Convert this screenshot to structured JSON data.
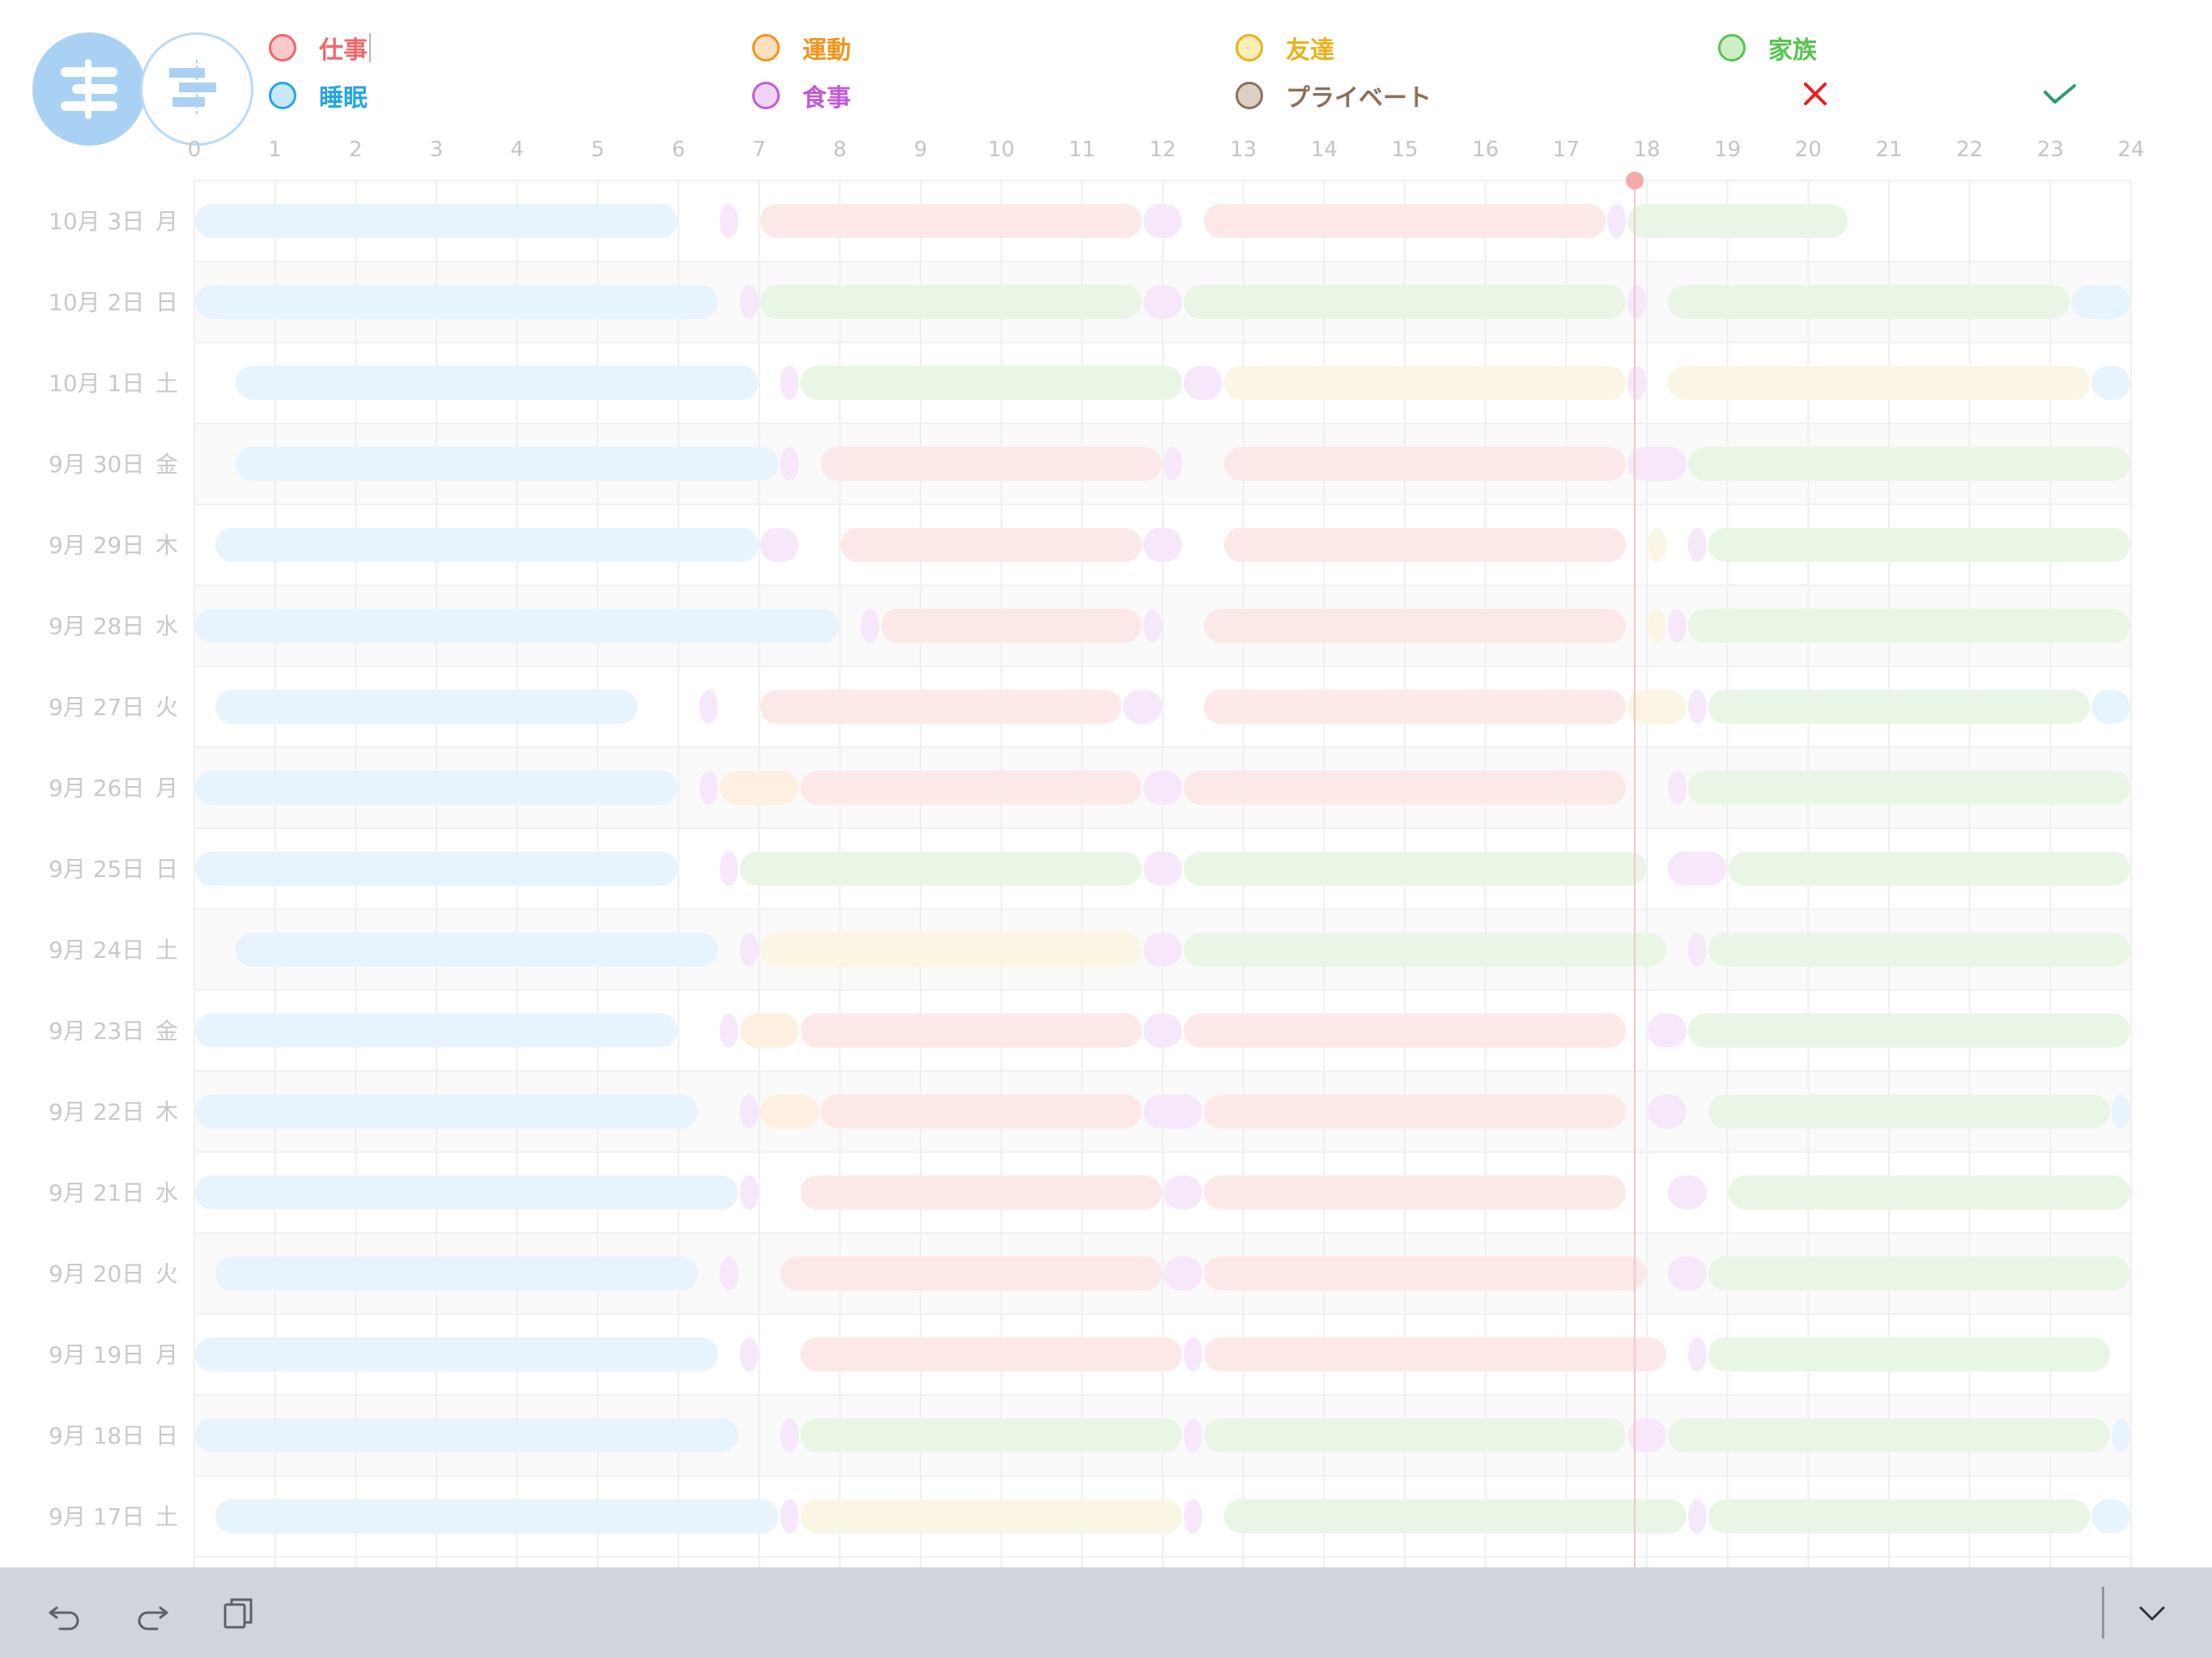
{
  "colors": {
    "仕事": "#fde8e8",
    "睡眠": "#e7f3fd",
    "運動": "#fdf0e0",
    "食事": "#f6e7fa",
    "友達": "#fbf5e3",
    "プライベート": "#ede6df",
    "家族": "#e9f6e5",
    "now_line": "#f6c5c5",
    "now_dot": "#f5a9a9"
  },
  "header": {
    "list_button_icon": "list-view-icon",
    "gantt_button_icon": "gantt-view-icon",
    "legend": [
      {
        "key": "work",
        "label": "仕事",
        "text_color": "#f0666b",
        "fill": "#fbc9c9",
        "border": "#f0666b"
      },
      {
        "key": "sleep",
        "label": "睡眠",
        "text_color": "#27a5e0",
        "fill": "#c8e7f8",
        "border": "#27a5e0"
      },
      {
        "key": "exercise",
        "label": "運動",
        "text_color": "#f2931e",
        "fill": "#fce0c0",
        "border": "#f2931e"
      },
      {
        "key": "meal",
        "label": "食事",
        "text_color": "#c05ad6",
        "fill": "#f0d3f6",
        "border": "#c05ad6"
      },
      {
        "key": "friends",
        "label": "友達",
        "text_color": "#e8b21a",
        "fill": "#fbedb6",
        "border": "#e8b21a"
      },
      {
        "key": "private",
        "label": "プライベート",
        "text_color": "#8a6f59",
        "fill": "#dccfc4",
        "border": "#8a6f59"
      },
      {
        "key": "family",
        "label": "家族",
        "text_color": "#56c44f",
        "fill": "#cdefc6",
        "border": "#56c44f"
      }
    ],
    "cancel_icon": "close-icon",
    "confirm_icon": "check-icon"
  },
  "chart_data": {
    "type": "gantt",
    "x_ticks": [
      "0",
      "1",
      "2",
      "3",
      "4",
      "5",
      "6",
      "7",
      "8",
      "9",
      "10",
      "11",
      "12",
      "13",
      "14",
      "15",
      "16",
      "17",
      "18",
      "19",
      "20",
      "21",
      "22",
      "23",
      "24"
    ],
    "xlim": [
      0,
      24
    ],
    "current_time": 17.85,
    "rows": [
      {
        "date": "10月 3日",
        "weekday": "月",
        "segments": [
          [
            "睡眠",
            0,
            6
          ],
          [
            "食事",
            6.5,
            6.75
          ],
          [
            "仕事",
            7,
            11.75
          ],
          [
            "食事",
            11.75,
            12.25
          ],
          [
            "仕事",
            12.5,
            17.5
          ],
          [
            "食事",
            17.5,
            17.75
          ],
          [
            "家族",
            17.75,
            20.5
          ]
        ]
      },
      {
        "date": "10月 2日",
        "weekday": "日",
        "segments": [
          [
            "睡眠",
            0,
            6.5
          ],
          [
            "食事",
            6.75,
            7
          ],
          [
            "家族",
            7,
            11.75
          ],
          [
            "食事",
            11.75,
            12.25
          ],
          [
            "家族",
            12.25,
            17.75
          ],
          [
            "食事",
            17.75,
            18
          ],
          [
            "家族",
            18.25,
            23.25
          ],
          [
            "睡眠",
            23.25,
            24
          ]
        ]
      },
      {
        "date": "10月 1日",
        "weekday": "土",
        "segments": [
          [
            "睡眠",
            0.5,
            7
          ],
          [
            "食事",
            7.25,
            7.5
          ],
          [
            "家族",
            7.5,
            12.25
          ],
          [
            "食事",
            12.25,
            12.75
          ],
          [
            "友達",
            12.75,
            17.75
          ],
          [
            "食事",
            17.75,
            18
          ],
          [
            "友達",
            18.25,
            23.5
          ],
          [
            "睡眠",
            23.5,
            24
          ]
        ]
      },
      {
        "date": "9月 30日",
        "weekday": "金",
        "segments": [
          [
            "睡眠",
            0.5,
            7.25
          ],
          [
            "食事",
            7.25,
            7.5
          ],
          [
            "仕事",
            7.75,
            12
          ],
          [
            "食事",
            12,
            12.25
          ],
          [
            "仕事",
            12.75,
            17.75
          ],
          [
            "食事",
            17.75,
            18.5
          ],
          [
            "家族",
            18.5,
            24
          ]
        ]
      },
      {
        "date": "9月 29日",
        "weekday": "木",
        "segments": [
          [
            "睡眠",
            0.25,
            7
          ],
          [
            "食事",
            7,
            7.5
          ],
          [
            "仕事",
            8,
            11.75
          ],
          [
            "食事",
            11.75,
            12.25
          ],
          [
            "仕事",
            12.75,
            17.75
          ],
          [
            "友達",
            18,
            18.25
          ],
          [
            "食事",
            18.5,
            18.75
          ],
          [
            "家族",
            18.75,
            24
          ]
        ]
      },
      {
        "date": "9月 28日",
        "weekday": "水",
        "segments": [
          [
            "睡眠",
            0,
            8
          ],
          [
            "食事",
            8.25,
            8.5
          ],
          [
            "仕事",
            8.5,
            11.75
          ],
          [
            "食事",
            11.75,
            12
          ],
          [
            "仕事",
            12.5,
            17.75
          ],
          [
            "友達",
            18,
            18.25
          ],
          [
            "食事",
            18.25,
            18.5
          ],
          [
            "家族",
            18.5,
            24
          ]
        ]
      },
      {
        "date": "9月 27日",
        "weekday": "火",
        "segments": [
          [
            "睡眠",
            0.25,
            5.5
          ],
          [
            "食事",
            6.25,
            6.5
          ],
          [
            "仕事",
            7,
            11.5
          ],
          [
            "食事",
            11.5,
            12
          ],
          [
            "仕事",
            12.5,
            17.75
          ],
          [
            "友達",
            17.75,
            18.5
          ],
          [
            "食事",
            18.5,
            18.75
          ],
          [
            "家族",
            18.75,
            23.5
          ],
          [
            "睡眠",
            23.5,
            24
          ]
        ]
      },
      {
        "date": "9月 26日",
        "weekday": "月",
        "segments": [
          [
            "睡眠",
            0,
            6
          ],
          [
            "食事",
            6.25,
            6.5
          ],
          [
            "運動",
            6.5,
            7.5
          ],
          [
            "仕事",
            7.5,
            11.75
          ],
          [
            "食事",
            11.75,
            12.25
          ],
          [
            "仕事",
            12.25,
            17.75
          ],
          [
            "食事",
            18.25,
            18.5
          ],
          [
            "家族",
            18.5,
            24
          ]
        ]
      },
      {
        "date": "9月 25日",
        "weekday": "日",
        "segments": [
          [
            "睡眠",
            0,
            6
          ],
          [
            "食事",
            6.5,
            6.75
          ],
          [
            "家族",
            6.75,
            11.75
          ],
          [
            "食事",
            11.75,
            12.25
          ],
          [
            "家族",
            12.25,
            18
          ],
          [
            "食事",
            18.25,
            19
          ],
          [
            "家族",
            19,
            24
          ]
        ]
      },
      {
        "date": "9月 24日",
        "weekday": "土",
        "segments": [
          [
            "睡眠",
            0.5,
            6.5
          ],
          [
            "食事",
            6.75,
            7
          ],
          [
            "友達",
            7,
            11.75
          ],
          [
            "食事",
            11.75,
            12.25
          ],
          [
            "家族",
            12.25,
            18.25
          ],
          [
            "食事",
            18.5,
            18.75
          ],
          [
            "家族",
            18.75,
            24
          ]
        ]
      },
      {
        "date": "9月 23日",
        "weekday": "金",
        "segments": [
          [
            "睡眠",
            0,
            6
          ],
          [
            "食事",
            6.5,
            6.75
          ],
          [
            "運動",
            6.75,
            7.5
          ],
          [
            "仕事",
            7.5,
            11.75
          ],
          [
            "食事",
            11.75,
            12.25
          ],
          [
            "仕事",
            12.25,
            17.75
          ],
          [
            "食事",
            18,
            18.5
          ],
          [
            "家族",
            18.5,
            24
          ]
        ]
      },
      {
        "date": "9月 22日",
        "weekday": "木",
        "segments": [
          [
            "睡眠",
            0,
            6.25
          ],
          [
            "食事",
            6.75,
            7
          ],
          [
            "運動",
            7,
            7.75
          ],
          [
            "仕事",
            7.75,
            11.75
          ],
          [
            "食事",
            11.75,
            12.5
          ],
          [
            "仕事",
            12.5,
            17.75
          ],
          [
            "食事",
            18,
            18.5
          ],
          [
            "家族",
            18.75,
            23.75
          ],
          [
            "睡眠",
            23.75,
            24
          ]
        ]
      },
      {
        "date": "9月 21日",
        "weekday": "水",
        "segments": [
          [
            "睡眠",
            0,
            6.75
          ],
          [
            "食事",
            6.75,
            7
          ],
          [
            "仕事",
            7.5,
            12
          ],
          [
            "食事",
            12,
            12.5
          ],
          [
            "仕事",
            12.5,
            17.75
          ],
          [
            "食事",
            18.25,
            18.75
          ],
          [
            "家族",
            19,
            24
          ]
        ]
      },
      {
        "date": "9月 20日",
        "weekday": "火",
        "segments": [
          [
            "睡眠",
            0.25,
            6.25
          ],
          [
            "食事",
            6.5,
            6.75
          ],
          [
            "仕事",
            7.25,
            12
          ],
          [
            "食事",
            12,
            12.5
          ],
          [
            "仕事",
            12.5,
            18
          ],
          [
            "食事",
            18.25,
            18.75
          ],
          [
            "家族",
            18.75,
            24
          ]
        ]
      },
      {
        "date": "9月 19日",
        "weekday": "月",
        "segments": [
          [
            "睡眠",
            0,
            6.5
          ],
          [
            "食事",
            6.75,
            7
          ],
          [
            "仕事",
            7.5,
            12.25
          ],
          [
            "食事",
            12.25,
            12.5
          ],
          [
            "仕事",
            12.5,
            18.25
          ],
          [
            "食事",
            18.5,
            18.75
          ],
          [
            "家族",
            18.75,
            23.75
          ]
        ]
      },
      {
        "date": "9月 18日",
        "weekday": "日",
        "segments": [
          [
            "睡眠",
            0,
            6.75
          ],
          [
            "食事",
            7.25,
            7.5
          ],
          [
            "家族",
            7.5,
            12.25
          ],
          [
            "食事",
            12.25,
            12.5
          ],
          [
            "家族",
            12.5,
            17.75
          ],
          [
            "食事",
            17.75,
            18.25
          ],
          [
            "家族",
            18.25,
            23.75
          ],
          [
            "睡眠",
            23.75,
            24
          ]
        ]
      },
      {
        "date": "9月 17日",
        "weekday": "土",
        "segments": [
          [
            "睡眠",
            0.25,
            7.25
          ],
          [
            "食事",
            7.25,
            7.5
          ],
          [
            "友達",
            7.5,
            12.25
          ],
          [
            "食事",
            12.25,
            12.5
          ],
          [
            "家族",
            12.75,
            18.5
          ],
          [
            "食事",
            18.5,
            18.75
          ],
          [
            "家族",
            18.75,
            23.5
          ],
          [
            "睡眠",
            23.5,
            24
          ]
        ]
      }
    ]
  },
  "toolbar": {
    "undo_icon": "undo-icon",
    "redo_icon": "redo-icon",
    "copy_icon": "copy-icon",
    "collapse_icon": "chevron-down-icon"
  }
}
